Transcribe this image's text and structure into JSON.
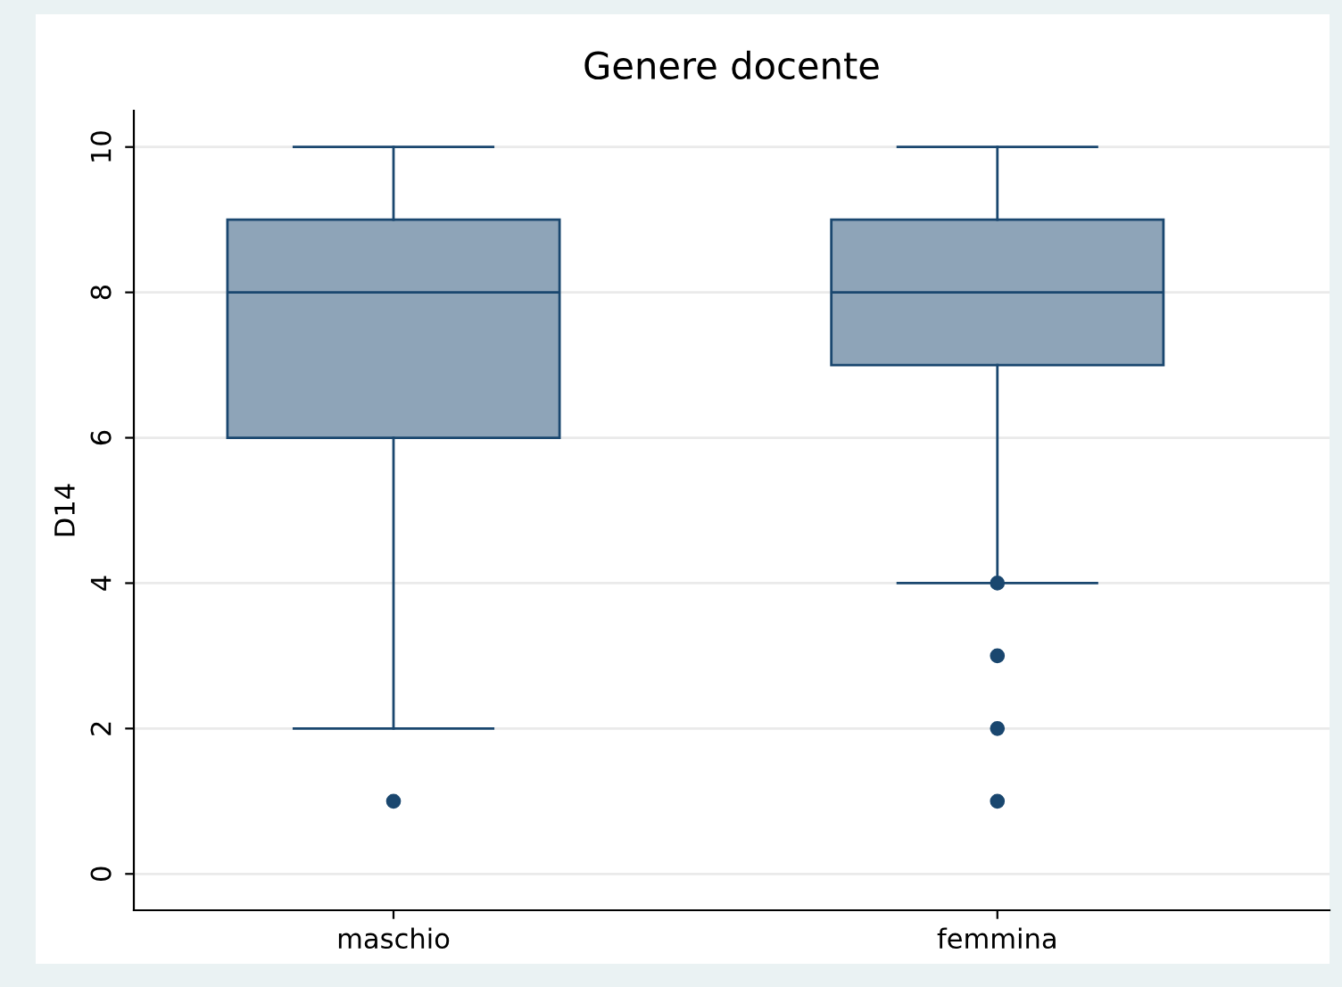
{
  "chart_data": {
    "type": "box",
    "title": "Genere docente",
    "ylabel": "D14",
    "categories": [
      "maschio",
      "femmina"
    ],
    "boxes": [
      {
        "low": 2,
        "q1": 6,
        "median": 8,
        "q3": 9,
        "high": 10,
        "outliers": [
          1
        ]
      },
      {
        "low": 4,
        "q1": 7,
        "median": 8,
        "q3": 9,
        "high": 10,
        "outliers": [
          4,
          3,
          2,
          1
        ]
      }
    ],
    "color": "#8ea4b8",
    "ylim": [
      -0.5,
      10.5
    ],
    "yticks": [
      0,
      2,
      4,
      6,
      8,
      10
    ],
    "grid": "y",
    "marker": "circle"
  }
}
